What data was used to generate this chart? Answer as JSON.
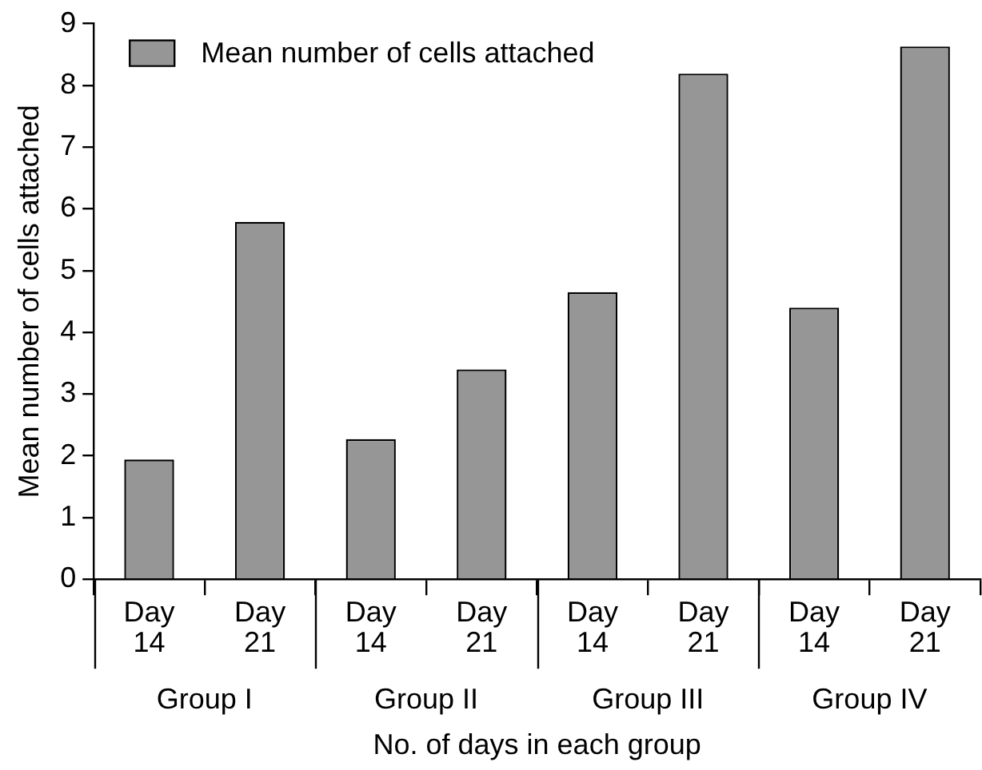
{
  "chart_data": {
    "type": "bar",
    "xlabel": "No. of days in each group",
    "ylabel": "Mean number of cells attached",
    "categories": [
      "Day 14",
      "Day 21",
      "Day 14",
      "Day 21",
      "Day 14",
      "Day 21",
      "Day 14",
      "Day 21"
    ],
    "series": [
      {
        "name": "Mean number of cells attached",
        "color": "#969696",
        "values": [
          1.94,
          5.79,
          2.27,
          3.4,
          4.65,
          8.19,
          4.4,
          8.63
        ]
      }
    ],
    "annotations": [
      "Group I",
      "Group II",
      "Group III",
      "Group IV"
    ],
    "ylim": [
      0,
      9
    ],
    "yticks": [
      0,
      1,
      2,
      3,
      4,
      5,
      6,
      7,
      8,
      9
    ],
    "grid": false,
    "legend": "top left"
  }
}
